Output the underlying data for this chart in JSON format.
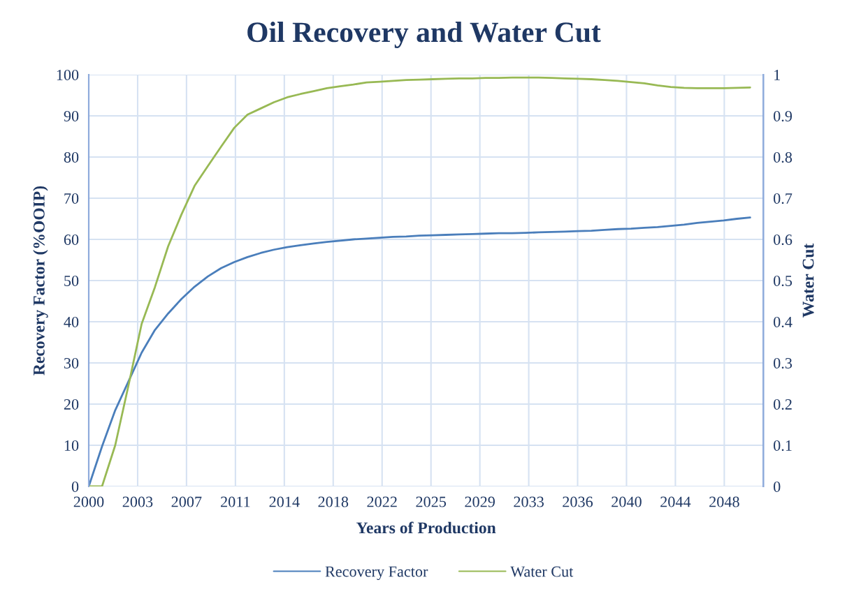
{
  "chart_data": {
    "type": "line",
    "title": "Oil Recovery and Water Cut",
    "xlabel": "Years of Production",
    "ylabel": "Recovery Factor (%OOIP)",
    "y2label": "Water Cut",
    "x": [
      "2000",
      "2001",
      "2002",
      "2003",
      "2004",
      "2005",
      "2006",
      "2007",
      "2008",
      "2009",
      "2010",
      "2011",
      "2012",
      "2013",
      "2014",
      "2015",
      "2016",
      "2017",
      "2018",
      "2019",
      "2020",
      "2021",
      "2022",
      "2023",
      "2024",
      "2025",
      "2026",
      "2027",
      "2028",
      "2029",
      "2030",
      "2031",
      "2032",
      "2033",
      "2034",
      "2035",
      "2036",
      "2037",
      "2038",
      "2039",
      "2040",
      "2041",
      "2042",
      "2043",
      "2044",
      "2045",
      "2046",
      "2047",
      "2048",
      "2049",
      "2050"
    ],
    "series": [
      {
        "name": "Recovery Factor",
        "color": "#4a7ebb",
        "values": [
          0,
          9.7,
          18.5,
          25.5,
          32.5,
          38,
          42,
          45.5,
          48.5,
          51,
          53,
          54.5,
          55.7,
          56.7,
          57.5,
          58.1,
          58.6,
          59,
          59.4,
          59.7,
          60,
          60.2,
          60.4,
          60.6,
          60.7,
          60.9,
          61,
          61.1,
          61.2,
          61.3,
          61.4,
          61.5,
          61.5,
          61.6,
          61.7,
          61.8,
          61.9,
          62,
          62.1,
          62.3,
          62.5,
          62.6,
          62.8,
          63,
          63.3,
          63.6,
          64,
          64.3,
          64.6,
          65,
          65.3
        ]
      },
      {
        "name": "Water Cut",
        "color": "#98b954",
        "axis": "y2",
        "values": [
          0,
          0,
          0.1,
          0.245,
          0.395,
          0.484,
          0.583,
          0.66,
          0.73,
          0.778,
          0.825,
          0.871,
          0.903,
          0.918,
          0.933,
          0.945,
          0.953,
          0.96,
          0.967,
          0.972,
          0.976,
          0.981,
          0.983,
          0.985,
          0.987,
          0.988,
          0.989,
          0.99,
          0.991,
          0.991,
          0.992,
          0.992,
          0.993,
          0.993,
          0.993,
          0.992,
          0.991,
          0.99,
          0.989,
          0.987,
          0.985,
          0.982,
          0.979,
          0.974,
          0.97,
          0.968,
          0.967,
          0.967,
          0.967,
          0.968,
          0.969
        ]
      }
    ],
    "xlim": [
      "2000-01-01",
      "2051-01-01"
    ],
    "xticks": [
      {
        "value": "2000-01-01",
        "label": "2000"
      },
      {
        "value": "2003-09-12",
        "label": "2003"
      },
      {
        "value": "2007-05-23",
        "label": "2007"
      },
      {
        "value": "2011-02-02",
        "label": "2011"
      },
      {
        "value": "2014-10-14",
        "label": "2014"
      },
      {
        "value": "2018-06-25",
        "label": "2018"
      },
      {
        "value": "2022-03-06",
        "label": "2022"
      },
      {
        "value": "2025-11-15",
        "label": "2025"
      },
      {
        "value": "2029-07-27",
        "label": "2029"
      },
      {
        "value": "2033-04-07",
        "label": "2033"
      },
      {
        "value": "2036-12-16",
        "label": "2036"
      },
      {
        "value": "2040-08-27",
        "label": "2040"
      },
      {
        "value": "2044-05-08",
        "label": "2044"
      },
      {
        "value": "2048-01-18",
        "label": "2048"
      }
    ],
    "ylim": [
      0,
      100
    ],
    "yticks": [
      0,
      10,
      20,
      30,
      40,
      50,
      60,
      70,
      80,
      90,
      100
    ],
    "y2lim": [
      0,
      1
    ],
    "y2ticks": [
      0,
      0.1,
      0.2,
      0.3,
      0.4,
      0.5,
      0.6,
      0.7,
      0.8,
      0.9,
      1
    ],
    "grid": true,
    "legend": "bottom",
    "marker": "none",
    "line_style": "solid"
  }
}
